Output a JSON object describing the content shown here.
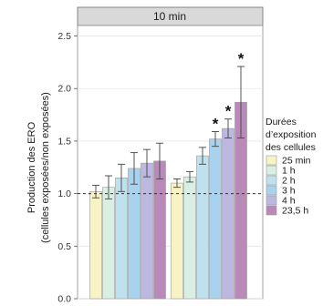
{
  "chart_data": {
    "type": "bar",
    "facet_label": "10 min",
    "ylabel_line1": "Production des ERO",
    "ylabel_line2": "(cellules exposées/non exposées)",
    "ylim": [
      0,
      2.6
    ],
    "yticks": [
      "0.0",
      "0.5",
      "1.0",
      "1.5",
      "2.0",
      "2.5"
    ],
    "ytick_values": [
      0.0,
      0.5,
      1.0,
      1.5,
      2.0,
      2.5
    ],
    "reference_line": 1.0,
    "grid": true,
    "legend_placement": "right",
    "legend_title": [
      "Durées",
      "d’exposition",
      "des cellules"
    ],
    "series": [
      {
        "name": "25 min",
        "color": "#f7f3c4",
        "values": [
          1.02,
          1.1
        ]
      },
      {
        "name": "1 h",
        "color": "#d9efe3",
        "values": [
          1.06,
          1.16
        ]
      },
      {
        "name": "2 h",
        "color": "#bfe1ee",
        "values": [
          1.15,
          1.36
        ]
      },
      {
        "name": "3 h",
        "color": "#a9d2ee",
        "values": [
          1.24,
          1.52
        ]
      },
      {
        "name": "4 h",
        "color": "#bdb8e0",
        "values": [
          1.29,
          1.62
        ]
      },
      {
        "name": "23,5 h",
        "color": "#b98ab8",
        "values": [
          1.31,
          1.87
        ]
      }
    ],
    "errors": [
      [
        0.06,
        0.04
      ],
      [
        0.11,
        0.05
      ],
      [
        0.13,
        0.08
      ],
      [
        0.15,
        0.07
      ],
      [
        0.13,
        0.09
      ],
      [
        0.17,
        0.34
      ]
    ],
    "significance_marker": "*",
    "significant": [
      [
        false,
        false
      ],
      [
        false,
        false
      ],
      [
        false,
        false
      ],
      [
        false,
        true
      ],
      [
        false,
        true
      ],
      [
        false,
        true
      ]
    ]
  }
}
